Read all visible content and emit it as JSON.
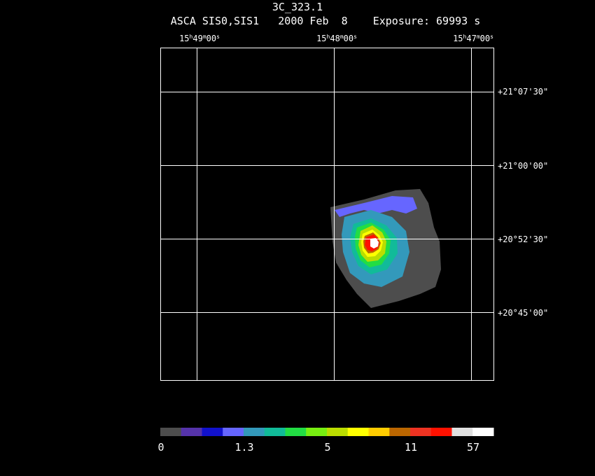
{
  "header": {
    "title": "3C_323.1",
    "subtitle": "ASCA SIS0,SIS1   2000 Feb  8    Exposure: 69993 s"
  },
  "ra_labels": [
    {
      "h": "15",
      "m": "49",
      "s": "00"
    },
    {
      "h": "15",
      "m": "48",
      "s": "00"
    },
    {
      "h": "15",
      "m": "47",
      "s": "00"
    }
  ],
  "dec_labels": [
    "+21°07'30\"",
    "+21°00'00\"",
    "+20°52'30\"",
    "+20°45'00\""
  ],
  "colorbar": {
    "colors": [
      "#4d4d4d",
      "#5533aa",
      "#1111cc",
      "#6666ff",
      "#3399bb",
      "#11bb99",
      "#22dd44",
      "#77ee11",
      "#bbdd00",
      "#ffff00",
      "#ffcc00",
      "#bb6600",
      "#ee3322",
      "#ff1100",
      "#e0e0e0",
      "#ffffff"
    ],
    "tick_labels": [
      "0",
      "1.3",
      "5",
      "11",
      "57"
    ]
  }
}
